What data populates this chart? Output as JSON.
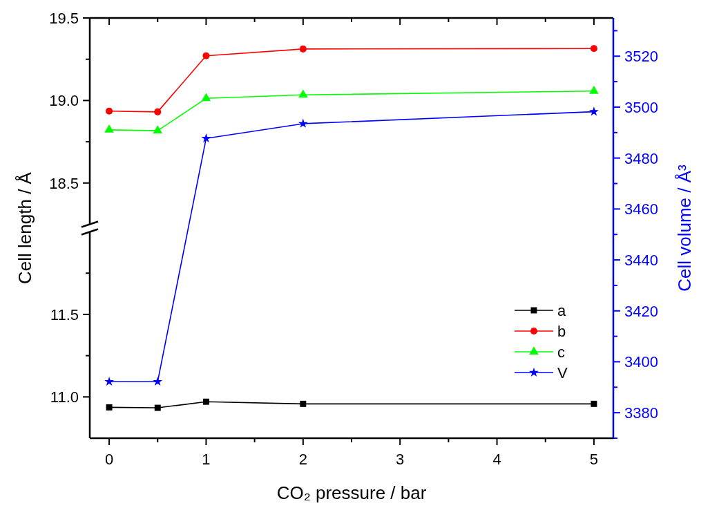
{
  "chart_data": [
    {
      "type": "line",
      "ylabel": "Cell length / Å",
      "x": [
        0,
        0.5,
        1,
        2,
        5
      ],
      "xlim": [
        -0.2,
        5.2
      ],
      "xticks": [
        0,
        {
          "value": 0.5,
          "label": null
        },
        1,
        {
          "value": 1.5,
          "label": null
        },
        2,
        {
          "value": 2.5,
          "label": null
        },
        3,
        {
          "value": 3.5,
          "label": null
        },
        4,
        {
          "value": 4.5,
          "label": null
        },
        5
      ],
      "ylim": [
        18.25,
        19.5
      ],
      "yticks": [
        {
          "value": 18.5,
          "label": "18.5"
        },
        {
          "value": 18.75,
          "label": null
        },
        {
          "value": 19,
          "label": "19.0"
        },
        {
          "value": 19.25,
          "label": null
        },
        {
          "value": 19.5,
          "label": "19.5"
        }
      ],
      "series": [
        {
          "name": "b",
          "color": "#ff0000",
          "marker": "circle",
          "values": [
            18.936,
            18.931,
            19.271,
            19.312,
            19.315
          ]
        },
        {
          "name": "c",
          "color": "#00ff00",
          "marker": "triangle",
          "values": [
            18.822,
            18.817,
            19.013,
            19.034,
            19.057
          ]
        }
      ],
      "tick_labels": "y",
      "legend": "right",
      "line_style": "solid"
    },
    {
      "type": "line",
      "xlabel": "CO₂ pressure / bar",
      "x": [
        0,
        0.5,
        1,
        2,
        5
      ],
      "xlim": [
        -0.2,
        5.2
      ],
      "xticks": [
        0,
        {
          "value": 0.5,
          "label": null
        },
        1,
        {
          "value": 1.5,
          "label": null
        },
        2,
        {
          "value": 2.5,
          "label": null
        },
        3,
        {
          "value": 3.5,
          "label": null
        },
        4,
        {
          "value": 4.5,
          "label": null
        },
        5
      ],
      "ylim": [
        10.75,
        12.0
      ],
      "yticks": [
        {
          "value": 11,
          "label": "11.0"
        },
        {
          "value": 11.25,
          "label": null
        },
        {
          "value": 11.5,
          "label": "11.5"
        },
        {
          "value": 11.75,
          "label": null
        }
      ],
      "series": [
        {
          "name": "a",
          "color": "#000000",
          "marker": "square",
          "values": [
            10.937,
            10.934,
            10.971,
            10.958,
            10.958
          ]
        }
      ],
      "legend": "right",
      "line_style": "solid"
    },
    {
      "type": "line",
      "y2label": "Cell volume / Å³",
      "x": [
        0,
        0.5,
        1,
        2,
        5
      ],
      "xlim": [
        -0.2,
        5.2
      ],
      "y2lim": [
        3370,
        3535
      ],
      "y2ticks": [
        {
          "value": 3370,
          "label": null
        },
        3380,
        {
          "value": 3390,
          "label": null
        },
        3400,
        {
          "value": 3410,
          "label": null
        },
        3420,
        {
          "value": 3430,
          "label": null
        },
        3440,
        {
          "value": 3450,
          "label": null
        },
        3460,
        {
          "value": 3470,
          "label": null
        },
        3480,
        {
          "value": 3490,
          "label": null
        },
        3500,
        {
          "value": 3510,
          "label": null
        },
        3520,
        {
          "value": 3530,
          "label": null
        }
      ],
      "series": [
        {
          "name": "V",
          "color": "#0000ff",
          "marker": "star",
          "axis": "y2",
          "values": [
            3392.2,
            3392.2,
            3487.7,
            3493.5,
            3498.2
          ]
        }
      ],
      "tick_labels": "y",
      "legend": "right",
      "line_style": "solid"
    }
  ]
}
